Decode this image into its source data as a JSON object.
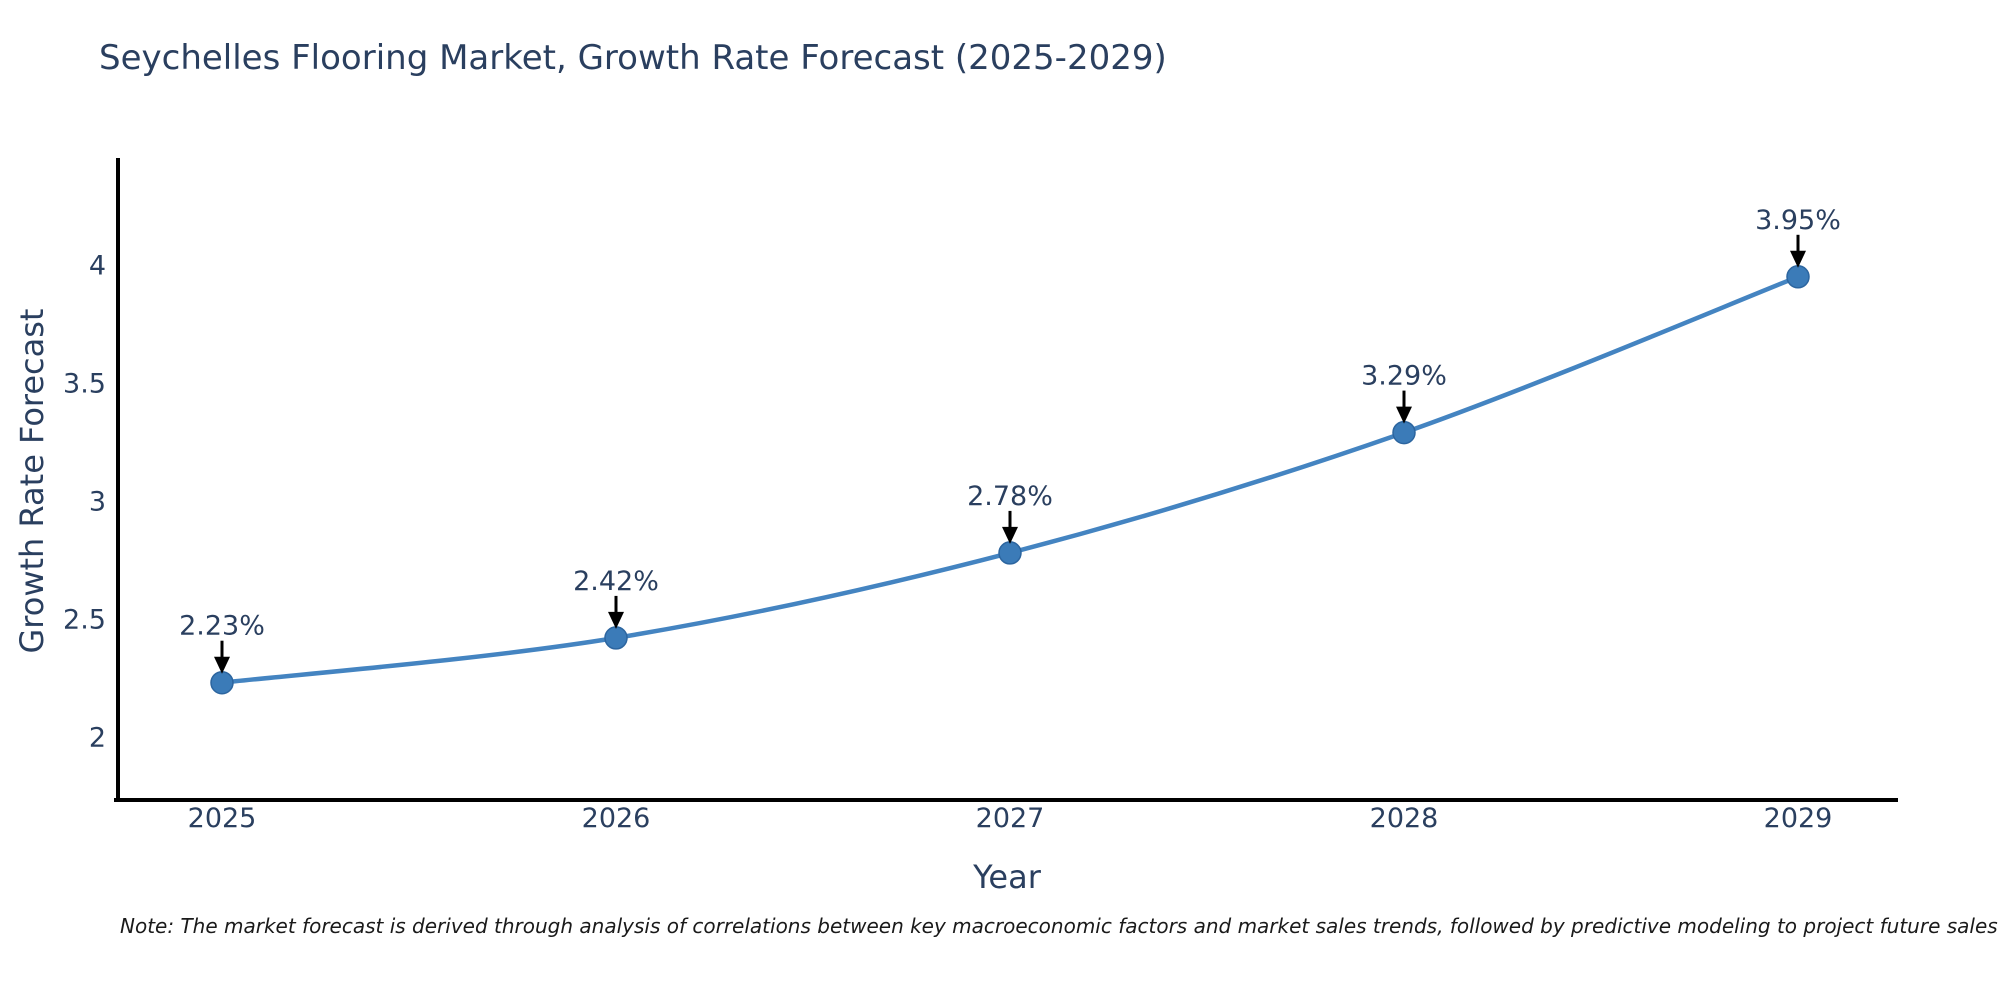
{
  "title": "Seychelles Flooring Market, Growth Rate Forecast (2025-2029)",
  "note": "Note: The market forecast is derived through analysis of correlations between key macroeconomic factors and market sales trends, followed by predictive modeling to project future sales",
  "chart_data": {
    "type": "line",
    "title": "Seychelles Flooring Market, Growth Rate Forecast (2025-2029)",
    "xlabel": "Year",
    "ylabel": "Growth Rate Forecast",
    "categories": [
      "2025",
      "2026",
      "2027",
      "2028",
      "2029"
    ],
    "values": [
      2.23,
      2.42,
      2.78,
      3.29,
      3.95
    ],
    "point_labels": [
      "2.23%",
      "2.42%",
      "2.78%",
      "3.29%",
      "3.95%"
    ],
    "yticks": [
      2,
      2.5,
      3,
      3.5,
      4
    ],
    "ylim": [
      1.73,
      4.45
    ],
    "grid": false,
    "legend": "none",
    "line_shape": "spline",
    "annotation_style": "label-above-with-down-arrow",
    "colors": {
      "line": "#4484c1",
      "marker_fill": "#3b7bb8",
      "marker_edge": "#2c659f",
      "arrow": "#000000",
      "axis_spine": "#000000",
      "text": "#2a3f5f",
      "note_text": "#1a1a1a",
      "background": "#ffffff"
    }
  }
}
